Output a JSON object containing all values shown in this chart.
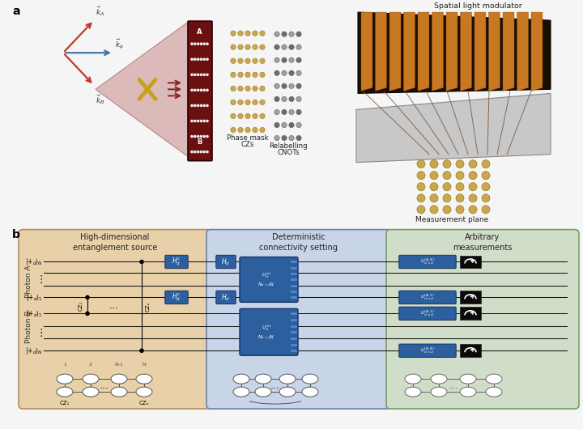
{
  "fig_width": 7.2,
  "fig_height": 5.3,
  "dpi": 100,
  "bg_color": "#f5f5f5",
  "panel_b": {
    "box1_color": "#e8d0a8",
    "box2_color": "#c8d4e8",
    "box3_color": "#d0ddc8",
    "box1_title": "High-dimensional\nentanglement source",
    "box2_title": "Deterministic\nconnectivity setting",
    "box3_title": "Arbitrary\nmeasurements",
    "blue_color": "#2c5f9e",
    "dark_color": "#0a0a0a"
  }
}
